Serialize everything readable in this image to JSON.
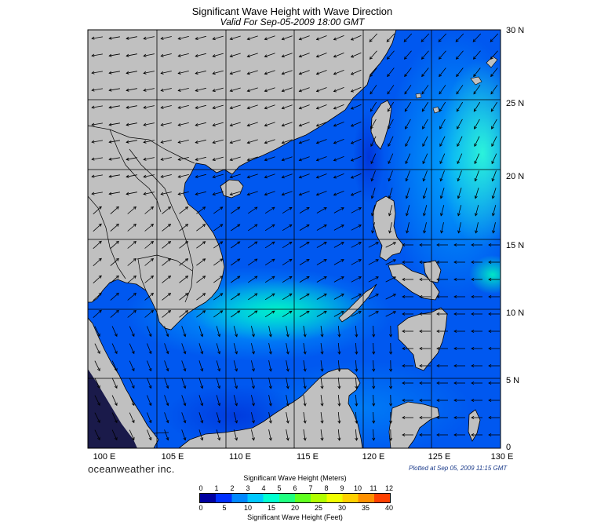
{
  "header": {
    "title": "Significant Wave Height with Wave Direction",
    "subtitle": "Valid For Sep-05-2009 18:00 GMT"
  },
  "map": {
    "region": "South China Sea",
    "projection": "lat-lon",
    "lon_range": [
      100,
      130
    ],
    "lat_range": [
      0,
      30
    ],
    "lon_labels": [
      "100 E",
      "105 E",
      "110 E",
      "115 E",
      "120 E",
      "125 E",
      "130 E"
    ],
    "lat_labels": [
      "30 N",
      "25 N",
      "20 N",
      "15 N",
      "10 N",
      "5 N",
      "0"
    ],
    "land_color": "#c0c0c0",
    "coast_color": "#000000",
    "arrow_color": "#000000",
    "grid": true
  },
  "footer": {
    "brand": "oceanweather inc.",
    "plotted": "Plotted at Sep 05, 2009 11:15 GMT"
  },
  "legend": {
    "meters_title": "Significant Wave Height (Meters)",
    "feet_title": "Significant Wave Height (Feet)",
    "meters_ticks": [
      "0",
      "1",
      "2",
      "3",
      "4",
      "5",
      "6",
      "7",
      "8",
      "9",
      "10",
      "11",
      "12"
    ],
    "feet_ticks": [
      "0",
      "5",
      "10",
      "15",
      "20",
      "25",
      "30",
      "35",
      "40"
    ],
    "colors": [
      "#0000a0",
      "#0030ff",
      "#0088ff",
      "#00c8ff",
      "#00ffd0",
      "#20ff80",
      "#60ff20",
      "#b0ff00",
      "#f0ff00",
      "#ffd000",
      "#ff9000",
      "#ff4000"
    ]
  }
}
